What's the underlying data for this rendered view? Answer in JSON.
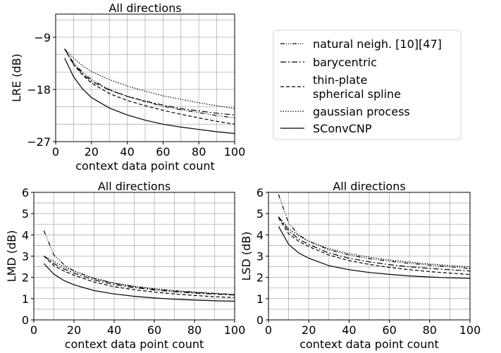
{
  "legend": {
    "entries": [
      {
        "label_lines": [
          "natural neigh. [10][47]"
        ],
        "dash": "6,2,1,2,1,2,1,2"
      },
      {
        "label_lines": [
          "barycentric"
        ],
        "dash": "8,3,2,3"
      },
      {
        "label_lines": [
          "thin-plate",
          "spherical spline"
        ],
        "dash": "5,3"
      },
      {
        "label_lines": [
          "gaussian process"
        ],
        "dash": "1.5,2"
      },
      {
        "label_lines": [
          "SConvCNP"
        ],
        "dash": ""
      }
    ]
  },
  "chart_data": [
    {
      "id": "lre",
      "type": "line",
      "title": "All directions",
      "xlabel": "context data point count",
      "ylabel": "LRE (dB)",
      "xlim": [
        0,
        100
      ],
      "ylim": [
        -27,
        -5
      ],
      "xticks": [
        0,
        20,
        40,
        60,
        80,
        100
      ],
      "yticks": [
        -27,
        -18,
        -9
      ],
      "ytick_labels": [
        "−27",
        "−18",
        "−9"
      ],
      "grid": true,
      "x": [
        5,
        10,
        15,
        20,
        30,
        40,
        50,
        60,
        70,
        80,
        90,
        100
      ],
      "series": [
        {
          "name": "natural neigh. [10][47]",
          "values": [
            -11.0,
            -13.4,
            -15.0,
            -16.3,
            -18.0,
            -19.2,
            -20.1,
            -20.9,
            -21.5,
            -22.0,
            -22.5,
            -22.9
          ]
        },
        {
          "name": "barycentric",
          "values": [
            -11.0,
            -13.6,
            -15.3,
            -16.6,
            -18.1,
            -19.2,
            -20.0,
            -20.7,
            -21.3,
            -21.7,
            -22.1,
            -22.4
          ]
        },
        {
          "name": "thin-plate spherical spline",
          "values": [
            -11.0,
            -13.7,
            -15.5,
            -16.9,
            -18.7,
            -19.9,
            -20.8,
            -21.6,
            -22.3,
            -22.9,
            -23.5,
            -24.0
          ]
        },
        {
          "name": "gaussian process",
          "values": [
            -11.0,
            -12.6,
            -13.9,
            -14.9,
            -16.3,
            -17.4,
            -18.3,
            -19.1,
            -19.7,
            -20.3,
            -20.8,
            -21.3
          ]
        },
        {
          "name": "SConvCNP",
          "values": [
            -12.6,
            -15.8,
            -17.9,
            -19.4,
            -21.2,
            -22.4,
            -23.3,
            -24.0,
            -24.5,
            -24.9,
            -25.3,
            -25.6
          ]
        }
      ]
    },
    {
      "id": "lmd",
      "type": "line",
      "title": "All directions",
      "xlabel": "context data point count",
      "ylabel": "LMD (dB)",
      "xlim": [
        0,
        100
      ],
      "ylim": [
        0,
        6
      ],
      "xticks": [
        0,
        20,
        40,
        60,
        80,
        100
      ],
      "yticks": [
        0,
        1,
        2,
        3,
        4,
        5,
        6
      ],
      "ytick_labels": [
        "0",
        "1",
        "2",
        "3",
        "4",
        "5",
        "6"
      ],
      "grid": true,
      "x": [
        5,
        10,
        15,
        20,
        30,
        40,
        50,
        60,
        70,
        80,
        90,
        100
      ],
      "series": [
        {
          "name": "natural neigh. [10][47]",
          "values": [
            4.2,
            3.05,
            2.6,
            2.3,
            1.95,
            1.72,
            1.57,
            1.45,
            1.36,
            1.3,
            1.24,
            1.2
          ]
        },
        {
          "name": "barycentric",
          "values": [
            3.0,
            2.65,
            2.4,
            2.2,
            1.88,
            1.66,
            1.52,
            1.41,
            1.32,
            1.26,
            1.21,
            1.17
          ]
        },
        {
          "name": "thin-plate spherical spline",
          "values": [
            3.0,
            2.55,
            2.3,
            2.1,
            1.78,
            1.56,
            1.42,
            1.31,
            1.22,
            1.15,
            1.09,
            1.05
          ]
        },
        {
          "name": "gaussian process",
          "values": [
            3.0,
            2.75,
            2.5,
            2.3,
            1.96,
            1.73,
            1.58,
            1.47,
            1.38,
            1.31,
            1.25,
            1.2
          ]
        },
        {
          "name": "SConvCNP",
          "values": [
            2.65,
            2.15,
            1.85,
            1.65,
            1.38,
            1.22,
            1.11,
            1.03,
            0.97,
            0.93,
            0.9,
            0.88
          ]
        }
      ]
    },
    {
      "id": "lsd",
      "type": "line",
      "title": "All directions",
      "xlabel": "context data point count",
      "ylabel": "LSD (dB)",
      "xlim": [
        0,
        100
      ],
      "ylim": [
        0,
        6
      ],
      "xticks": [
        0,
        20,
        40,
        60,
        80,
        100
      ],
      "yticks": [
        0,
        1,
        2,
        3,
        4,
        5,
        6
      ],
      "ytick_labels": [
        "0",
        "1",
        "2",
        "3",
        "4",
        "5",
        "6"
      ],
      "grid": true,
      "x": [
        5,
        10,
        15,
        20,
        30,
        40,
        50,
        60,
        70,
        80,
        90,
        100
      ],
      "series": [
        {
          "name": "natural neigh. [10][47]",
          "values": [
            5.9,
            4.55,
            4.0,
            3.7,
            3.3,
            3.05,
            2.88,
            2.76,
            2.66,
            2.58,
            2.5,
            2.42
          ]
        },
        {
          "name": "barycentric",
          "values": [
            4.85,
            4.2,
            3.8,
            3.55,
            3.15,
            2.9,
            2.73,
            2.6,
            2.5,
            2.42,
            2.36,
            2.3
          ]
        },
        {
          "name": "thin-plate spherical spline",
          "values": [
            4.8,
            4.05,
            3.7,
            3.45,
            3.05,
            2.79,
            2.61,
            2.47,
            2.36,
            2.27,
            2.2,
            2.13
          ]
        },
        {
          "name": "gaussian process",
          "values": [
            4.85,
            4.3,
            3.95,
            3.7,
            3.35,
            3.12,
            2.95,
            2.82,
            2.72,
            2.63,
            2.56,
            2.5
          ]
        },
        {
          "name": "SConvCNP",
          "values": [
            4.4,
            3.55,
            3.15,
            2.9,
            2.55,
            2.36,
            2.23,
            2.14,
            2.07,
            2.02,
            1.98,
            1.95
          ]
        }
      ]
    }
  ]
}
